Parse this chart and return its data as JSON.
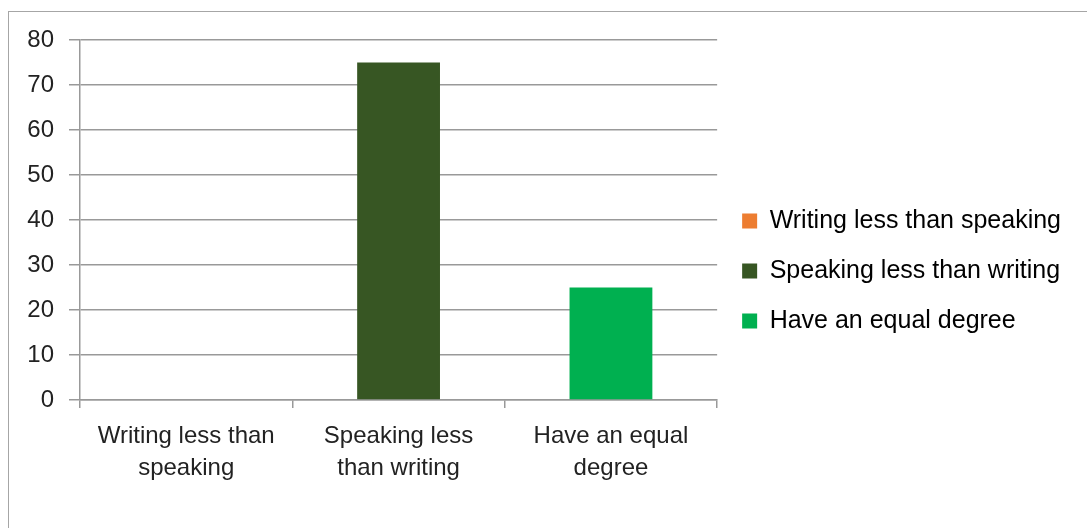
{
  "chart_data": {
    "type": "bar",
    "categories": [
      "Writing less than speaking",
      "Speaking less than writing",
      "Have an equal degree"
    ],
    "series": [
      {
        "name": "Writing less than speaking",
        "color": "#ed7d31",
        "values": [
          0,
          null,
          null
        ]
      },
      {
        "name": "Speaking less than writing",
        "color": "#375623",
        "values": [
          null,
          75,
          null
        ]
      },
      {
        "name": "Have an equal degree",
        "color": "#00b050",
        "values": [
          null,
          null,
          25
        ]
      }
    ],
    "ylim": [
      0,
      80
    ],
    "yticks": [
      0,
      10,
      20,
      30,
      40,
      50,
      60,
      70,
      80
    ],
    "grid": "y",
    "legend": "right"
  }
}
